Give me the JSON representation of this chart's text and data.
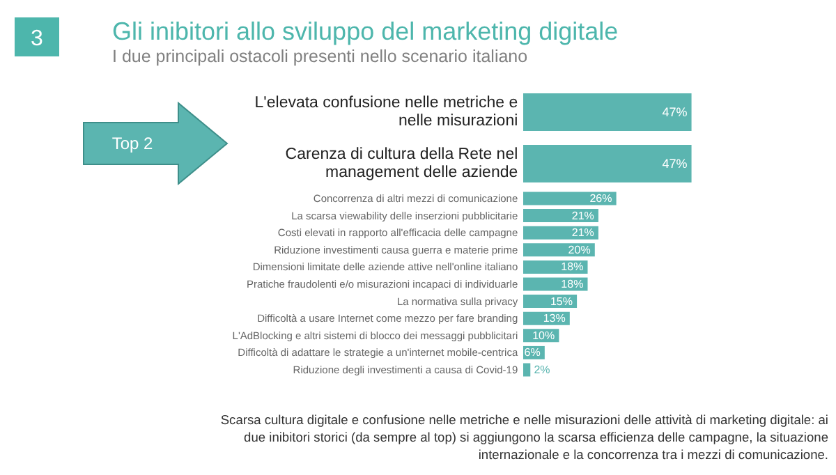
{
  "chart_data": [
    {
      "type": "bar",
      "orientation": "horizontal",
      "title": "Gli inibitori allo sviluppo del marketing digitale",
      "subtitle": "I due principali ostacoli presenti nello scenario italiano",
      "categories": [
        "L'elevata confusione nelle metriche e\nnelle misurazioni",
        "Carenza di cultura della Rete nel\nmanagement delle aziende"
      ],
      "values": [
        47,
        47
      ],
      "color": "#5bb5b0",
      "value_labels": [
        "47%",
        "47%"
      ],
      "annotations": [
        "3",
        "Top 2"
      ]
    },
    {
      "type": "bar",
      "orientation": "horizontal",
      "categories": [
        "Concorrenza di altri mezzi di comunicazione",
        "La scarsa viewability delle inserzioni pubblicitarie",
        "Costi elevati in rapporto all'efficacia delle campagne",
        "Riduzione investimenti causa guerra e materie prime",
        "Dimensioni limitate delle aziende attive nell'online italiano",
        "Pratiche fraudolenti e/o misurazioni incapaci di individuarle",
        "La normativa sulla privacy",
        "Difficoltà a usare Internet come mezzo per fare branding",
        "L'AdBlocking e altri sistemi di blocco dei messaggi pubblicitari",
        "Difficoltà di adattare le strategie a un'internet mobile-centrica",
        "Riduzione degli investimenti a causa di Covid-19"
      ],
      "values": [
        26,
        21,
        21,
        20,
        18,
        18,
        15,
        13,
        10,
        6,
        2
      ],
      "color": "#5bb5b0",
      "value_labels": [
        "26%",
        "21%",
        "21%",
        "20%",
        "18%",
        "18%",
        "15%",
        "13%",
        "10%",
        "6%",
        "2%"
      ],
      "annotations": [
        "Scarsa cultura digitale e confusione nelle metriche e nelle misurazioni delle attività di marketing digitale: ai\ndue inibitori storici (da sempre al top) si aggiungono la scarsa efficienza delle campagne, la situazione\ninternazionale e la concorrenza tra i mezzi di comunicazione."
      ]
    }
  ]
}
